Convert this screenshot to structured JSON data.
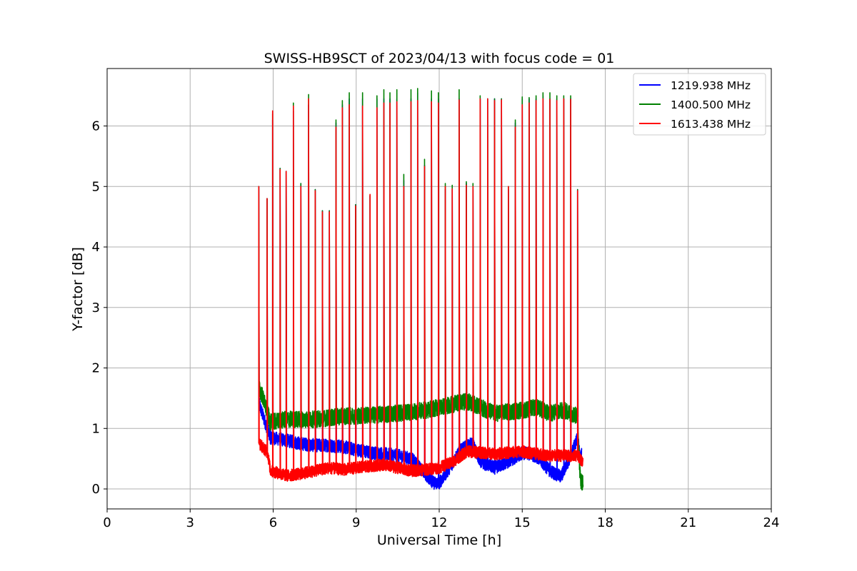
{
  "chart_data": {
    "type": "line",
    "title": "SWISS-HB9SCT of 2023/04/13 with focus code = 01",
    "xlabel": "Universal Time [h]",
    "ylabel": "Y-factor [dB]",
    "xlim": [
      0,
      24
    ],
    "ylim": [
      -0.33,
      6.95
    ],
    "xticks": [
      0,
      3,
      6,
      9,
      12,
      15,
      18,
      21,
      24
    ],
    "yticks": [
      0,
      1,
      2,
      3,
      4,
      5,
      6
    ],
    "grid": true,
    "legend_position": "top-right",
    "x_range_observed": [
      5.5,
      17.2
    ],
    "series": [
      {
        "name": "1219.938 MHz",
        "color": "#0000ff",
        "baseline": [
          [
            5.5,
            1.4
          ],
          [
            5.6,
            1.25
          ],
          [
            5.9,
            0.85
          ],
          [
            6.5,
            0.8
          ],
          [
            7.0,
            0.75
          ],
          [
            7.5,
            0.72
          ],
          [
            8.0,
            0.72
          ],
          [
            8.5,
            0.7
          ],
          [
            9.0,
            0.65
          ],
          [
            9.5,
            0.6
          ],
          [
            10.0,
            0.58
          ],
          [
            10.5,
            0.55
          ],
          [
            11.0,
            0.5
          ],
          [
            11.5,
            0.25
          ],
          [
            11.8,
            0.1
          ],
          [
            12.0,
            0.1
          ],
          [
            12.3,
            0.3
          ],
          [
            12.8,
            0.65
          ],
          [
            13.2,
            0.75
          ],
          [
            13.5,
            0.45
          ],
          [
            14.0,
            0.35
          ],
          [
            14.5,
            0.45
          ],
          [
            15.0,
            0.6
          ],
          [
            15.5,
            0.55
          ],
          [
            16.0,
            0.3
          ],
          [
            16.4,
            0.2
          ],
          [
            16.8,
            0.6
          ],
          [
            17.0,
            0.85
          ],
          [
            17.1,
            0.5
          ],
          [
            17.15,
            0.6
          ]
        ]
      },
      {
        "name": "1400.500 MHz",
        "color": "#008000",
        "baseline": [
          [
            5.5,
            1.65
          ],
          [
            5.6,
            1.55
          ],
          [
            5.9,
            1.1
          ],
          [
            6.5,
            1.15
          ],
          [
            7.5,
            1.15
          ],
          [
            8.5,
            1.2
          ],
          [
            9.5,
            1.22
          ],
          [
            10.5,
            1.25
          ],
          [
            11.5,
            1.3
          ],
          [
            12.0,
            1.35
          ],
          [
            12.5,
            1.4
          ],
          [
            13.0,
            1.45
          ],
          [
            13.5,
            1.35
          ],
          [
            14.0,
            1.25
          ],
          [
            15.0,
            1.3
          ],
          [
            15.5,
            1.35
          ],
          [
            16.0,
            1.25
          ],
          [
            16.5,
            1.3
          ],
          [
            17.0,
            1.2
          ],
          [
            17.05,
            0.6
          ],
          [
            17.1,
            0.15
          ],
          [
            17.2,
            0.1
          ]
        ]
      },
      {
        "name": "1613.438 MHz",
        "color": "#ff0000",
        "baseline": [
          [
            5.5,
            0.75
          ],
          [
            5.8,
            0.6
          ],
          [
            5.9,
            0.3
          ],
          [
            6.5,
            0.22
          ],
          [
            7.0,
            0.25
          ],
          [
            7.5,
            0.3
          ],
          [
            8.0,
            0.35
          ],
          [
            8.5,
            0.32
          ],
          [
            9.0,
            0.35
          ],
          [
            9.5,
            0.38
          ],
          [
            10.0,
            0.4
          ],
          [
            10.5,
            0.35
          ],
          [
            11.0,
            0.3
          ],
          [
            11.5,
            0.32
          ],
          [
            12.0,
            0.35
          ],
          [
            12.5,
            0.45
          ],
          [
            13.0,
            0.62
          ],
          [
            13.5,
            0.6
          ],
          [
            14.0,
            0.58
          ],
          [
            14.5,
            0.6
          ],
          [
            15.0,
            0.62
          ],
          [
            15.5,
            0.58
          ],
          [
            16.0,
            0.55
          ],
          [
            16.5,
            0.55
          ],
          [
            17.0,
            0.55
          ],
          [
            17.1,
            0.5
          ],
          [
            17.2,
            0.45
          ]
        ]
      }
    ],
    "calibration_spikes": {
      "times": [
        5.48,
        5.78,
        5.98,
        6.25,
        6.47,
        6.73,
        7.0,
        7.28,
        7.52,
        7.78,
        8.03,
        8.27,
        8.5,
        8.75,
        8.98,
        9.23,
        9.5,
        9.75,
        10.0,
        10.22,
        10.47,
        10.72,
        10.98,
        11.22,
        11.47,
        11.72,
        11.97,
        12.22,
        12.47,
        12.72,
        12.98,
        13.22,
        13.48,
        13.75,
        14.0,
        14.25,
        14.5,
        14.75,
        15.0,
        15.25,
        15.5,
        15.75,
        16.0,
        16.25,
        16.5,
        16.75,
        17.0
      ],
      "peak_1219_938_MHz": [
        5.0,
        4.8,
        6.1,
        5.3,
        5.25,
        6.25,
        5.05,
        6.35,
        4.95,
        4.6,
        4.6,
        6.05,
        6.35,
        6.45,
        4.7,
        6.45,
        4.85,
        6.45,
        6.45,
        6.45,
        6.45,
        5.1,
        6.45,
        6.55,
        5.35,
        6.45,
        6.45,
        4.95,
        4.95,
        6.45,
        5.05,
        4.95,
        6.45,
        6.45,
        6.45,
        6.45,
        4.95,
        6.05,
        6.45,
        6.45,
        6.45,
        6.5,
        6.45,
        6.45,
        6.45,
        6.45,
        4.95
      ],
      "peak_1400_500_MHz": [
        5.0,
        4.8,
        6.2,
        5.3,
        5.25,
        6.38,
        5.05,
        6.52,
        4.95,
        4.6,
        4.6,
        6.1,
        6.42,
        6.55,
        4.7,
        6.55,
        4.85,
        6.5,
        6.6,
        6.55,
        6.6,
        5.2,
        6.6,
        6.62,
        5.45,
        6.58,
        6.55,
        5.05,
        5.02,
        6.6,
        5.08,
        5.05,
        6.5,
        6.45,
        6.45,
        6.45,
        5.0,
        6.1,
        6.48,
        6.47,
        6.5,
        6.55,
        6.55,
        6.5,
        6.5,
        6.5,
        4.95
      ],
      "peak_1613_438_MHz": [
        5.0,
        4.8,
        6.25,
        5.28,
        5.25,
        6.33,
        5.0,
        6.45,
        4.93,
        4.58,
        4.58,
        5.98,
        6.3,
        6.35,
        4.68,
        6.33,
        4.87,
        6.3,
        6.38,
        6.38,
        6.4,
        5.0,
        6.4,
        6.42,
        5.33,
        6.4,
        6.38,
        5.0,
        4.96,
        6.43,
        5.02,
        5.0,
        6.45,
        6.45,
        6.42,
        6.43,
        5.0,
        5.98,
        6.35,
        6.38,
        6.42,
        6.45,
        6.44,
        6.42,
        6.45,
        6.44,
        4.93
      ]
    }
  }
}
